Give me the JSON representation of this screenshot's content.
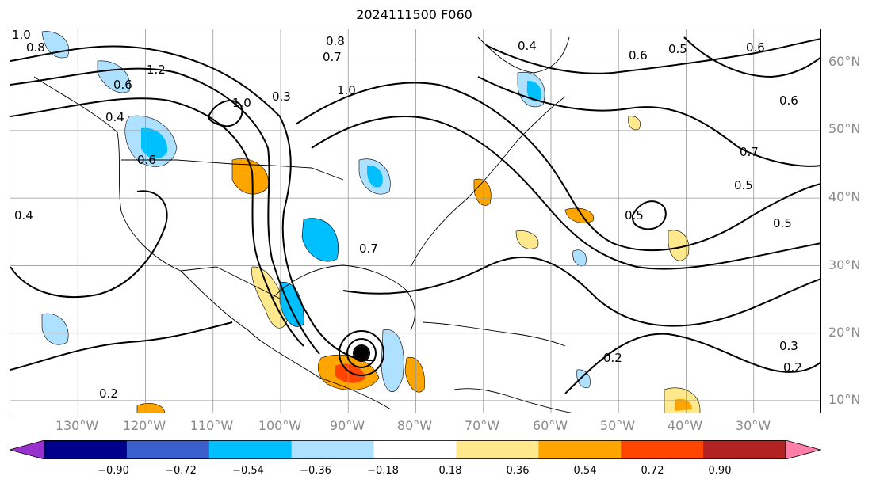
{
  "title": "2024111500 F060",
  "map": {
    "lon_range": [
      -140,
      -20
    ],
    "lat_range": [
      8,
      65
    ],
    "gridlines": true,
    "lat_labels": [
      "60°N",
      "50°N",
      "40°N",
      "30°N",
      "20°N",
      "10°N"
    ],
    "lat_values": [
      60,
      50,
      40,
      30,
      20,
      10
    ],
    "lon_labels": [
      "130°W",
      "120°W",
      "110°W",
      "100°W",
      "90°W",
      "80°W",
      "70°W",
      "60°W",
      "50°W",
      "40°W",
      "30°W"
    ],
    "lon_values": [
      -130,
      -120,
      -110,
      -100,
      -90,
      -80,
      -70,
      -60,
      -50,
      -40,
      -30
    ],
    "contour_labels": [
      "1.0",
      "0.8",
      "0.6",
      "1.2",
      "0.4",
      "0.6",
      "1.0",
      "0.8",
      "0.7",
      "1.0",
      "0.4",
      "0.6",
      "0.7",
      "0.5",
      "0.5",
      "0.2",
      "0.2",
      "0.3",
      "0.4",
      "0.6",
      "0.7",
      "0.5",
      "0.6",
      "0.5",
      "0.2",
      "0.3"
    ],
    "colors": {
      "purple": "#9932cc",
      "navy": "#00008b",
      "blue": "#3a5fcd",
      "deepskyblue": "#00bfff",
      "lightblue": "#aee0ff",
      "white": "#ffffff",
      "yellow": "#ffe98c",
      "orange": "#ffa500",
      "orangered": "#ff4500",
      "firebrick": "#b22222",
      "pink": "#ff7fa8"
    }
  },
  "colorbar": {
    "ticks": [
      "−0.90",
      "−0.72",
      "−0.54",
      "−0.36",
      "−0.18",
      "0.18",
      "0.36",
      "0.54",
      "0.72",
      "0.90"
    ],
    "tick_values": [
      -0.9,
      -0.72,
      -0.54,
      -0.36,
      -0.18,
      0.18,
      0.36,
      0.54,
      0.72,
      0.9
    ],
    "colors": [
      "#9932cc",
      "#00008b",
      "#3a5fcd",
      "#00bfff",
      "#aee0ff",
      "#ffffff",
      "#ffe98c",
      "#ffa500",
      "#ff4500",
      "#b22222",
      "#ff7fa8"
    ],
    "extend": "both"
  }
}
